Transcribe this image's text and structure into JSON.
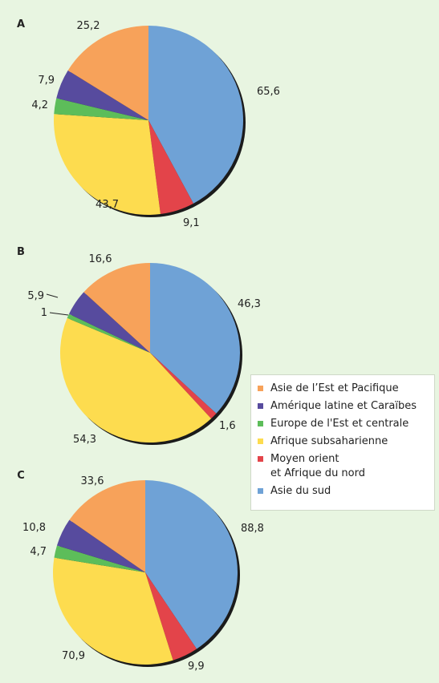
{
  "chart_data": [
    {
      "type": "pie",
      "panel": "A",
      "values": [
        {
          "region": "Asie du sud",
          "value": 65.6,
          "label": "65,6"
        },
        {
          "region": "Moyen orient et Afrique du nord",
          "value": 9.1,
          "label": "9,1"
        },
        {
          "region": "Afrique subsaharienne",
          "value": 43.7,
          "label": "43,7"
        },
        {
          "region": "Europe de l'Est et centrale",
          "value": 4.2,
          "label": "4,2"
        },
        {
          "region": "Amérique latine et Caraïbes",
          "value": 7.9,
          "label": "7,9"
        },
        {
          "region": "Asie de l'Est et Pacifique",
          "value": 25.2,
          "label": "25,2"
        }
      ]
    },
    {
      "type": "pie",
      "panel": "B",
      "values": [
        {
          "region": "Asie du sud",
          "value": 46.3,
          "label": "46,3"
        },
        {
          "region": "Moyen orient et Afrique du nord",
          "value": 1.6,
          "label": "1,6"
        },
        {
          "region": "Afrique subsaharienne",
          "value": 54.3,
          "label": "54,3"
        },
        {
          "region": "Europe de l'Est et centrale",
          "value": 1.0,
          "label": "1"
        },
        {
          "region": "Amérique latine et Caraïbes",
          "value": 5.9,
          "label": "5,9"
        },
        {
          "region": "Asie de l'Est et Pacifique",
          "value": 16.6,
          "label": "16,6"
        }
      ]
    },
    {
      "type": "pie",
      "panel": "C",
      "values": [
        {
          "region": "Asie du sud",
          "value": 88.8,
          "label": "88,8"
        },
        {
          "region": "Moyen orient et Afrique du nord",
          "value": 9.9,
          "label": "9,9"
        },
        {
          "region": "Afrique subsaharienne",
          "value": 70.9,
          "label": "70,9"
        },
        {
          "region": "Europe de l'Est et centrale",
          "value": 4.7,
          "label": "4,7"
        },
        {
          "region": "Amérique latine et Caraïbes",
          "value": 10.8,
          "label": "10,8"
        },
        {
          "region": "Asie de l'Est et Pacifique",
          "value": 33.6,
          "label": "33,6"
        }
      ]
    }
  ],
  "legend": {
    "position": "right",
    "items": [
      {
        "region": "Asie de l'Est et Pacifique",
        "label": "Asie de l’Est et Pacifique",
        "color": "#f7a25a"
      },
      {
        "region": "Amérique latine et Caraïbes",
        "label": "Amérique latine et Caraïbes",
        "color": "#574b9e"
      },
      {
        "region": "Europe de l'Est et centrale",
        "label": "Europe de l'Est et centrale",
        "color": "#5dbd5a"
      },
      {
        "region": "Afrique subsaharienne",
        "label": "Afrique subsaharienne",
        "color": "#fddc4f"
      },
      {
        "region": "Moyen orient et Afrique du nord",
        "label": "Moyen orient\net Afrique du nord",
        "color": "#e3444a"
      },
      {
        "region": "Asie du sud",
        "label": "Asie du sud",
        "color": "#6fa2d6"
      }
    ]
  }
}
